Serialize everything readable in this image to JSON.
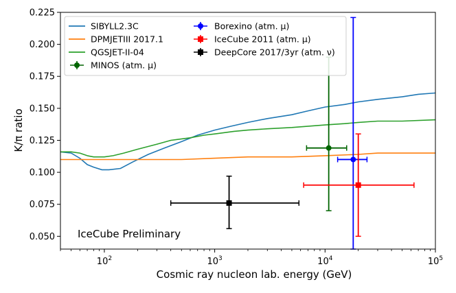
{
  "chart_data": {
    "type": "line",
    "xscale": "log",
    "xlim": [
      40,
      100000
    ],
    "ylim": [
      0.04,
      0.225
    ],
    "xlabel": "Cosmic ray nucleon lab. energy (GeV)",
    "ylabel": "K/π ratio",
    "annotation": "IceCube Preliminary",
    "yticks": [
      0.05,
      0.075,
      0.1,
      0.125,
      0.15,
      0.175,
      0.2,
      0.225
    ],
    "ytick_labels": [
      "0.050",
      "0.075",
      "0.100",
      "0.125",
      "0.150",
      "0.175",
      "0.200",
      "0.225"
    ],
    "xticks": [
      {
        "value": 100,
        "base": "10",
        "exp": "2"
      },
      {
        "value": 1000,
        "base": "10",
        "exp": "3"
      },
      {
        "value": 10000,
        "base": "10",
        "exp": "4"
      },
      {
        "value": 100000,
        "base": "10",
        "exp": "5"
      }
    ],
    "series": [
      {
        "name": "SIBYLL2.3C",
        "color": "#1f77b4",
        "x": [
          40,
          50,
          60,
          70,
          80,
          95,
          110,
          140,
          180,
          250,
          350,
          500,
          700,
          1000,
          1400,
          2000,
          3000,
          5000,
          7000,
          10000,
          15000,
          20000,
          30000,
          50000,
          70000,
          100000
        ],
        "y": [
          0.116,
          0.115,
          0.111,
          0.106,
          0.104,
          0.102,
          0.102,
          0.103,
          0.108,
          0.114,
          0.119,
          0.124,
          0.129,
          0.133,
          0.136,
          0.139,
          0.142,
          0.145,
          0.148,
          0.151,
          0.153,
          0.155,
          0.157,
          0.159,
          0.161,
          0.162
        ]
      },
      {
        "name": "DPMJETIII 2017.1",
        "color": "#ff7f0e",
        "x": [
          40,
          60,
          100,
          200,
          500,
          1000,
          2000,
          5000,
          10000,
          20000,
          30000,
          50000,
          100000
        ],
        "y": [
          0.11,
          0.11,
          0.11,
          0.11,
          0.11,
          0.111,
          0.112,
          0.112,
          0.113,
          0.114,
          0.115,
          0.115,
          0.115
        ]
      },
      {
        "name": "QGSJET-II-04",
        "color": "#2ca02c",
        "x": [
          40,
          50,
          60,
          70,
          80,
          100,
          120,
          150,
          200,
          300,
          400,
          600,
          800,
          1000,
          1500,
          2000,
          3000,
          5000,
          10000,
          15000,
          20000,
          30000,
          50000,
          100000
        ],
        "y": [
          0.116,
          0.116,
          0.115,
          0.113,
          0.112,
          0.112,
          0.113,
          0.115,
          0.118,
          0.122,
          0.125,
          0.127,
          0.129,
          0.13,
          0.132,
          0.133,
          0.134,
          0.135,
          0.137,
          0.138,
          0.139,
          0.14,
          0.14,
          0.141
        ]
      }
    ],
    "measurements": [
      {
        "name": "MINOS (atm. μ)",
        "color": "#006400",
        "marker": "circle",
        "x": 10800,
        "y": 0.119,
        "xlo": 6800,
        "xhi": 15700,
        "ylo": 0.07,
        "yhi": 0.19
      },
      {
        "name": "Borexino (atm. μ)",
        "color": "#0000ff",
        "marker": "circle",
        "x": 18000,
        "y": 0.11,
        "xlo": 13000,
        "xhi": 24000,
        "ylo": 0.04,
        "yhi": 0.221
      },
      {
        "name": "IceCube 2011 (atm. μ)",
        "color": "#ff0000",
        "marker": "square",
        "x": 20000,
        "y": 0.09,
        "xlo": 6400,
        "xhi": 64000,
        "ylo": 0.05,
        "yhi": 0.13
      },
      {
        "name": "DeepCore 2017/3yr (atm. ν)",
        "color": "#000000",
        "marker": "square",
        "x": 1350,
        "y": 0.076,
        "xlo": 400,
        "xhi": 5800,
        "ylo": 0.056,
        "yhi": 0.097
      }
    ],
    "legend": {
      "placement": "top-left",
      "entries": [
        {
          "label": "SIBYLL2.3C",
          "kind": "line",
          "color": "#1f77b4"
        },
        {
          "label": "DPMJETIII 2017.1",
          "kind": "line",
          "color": "#ff7f0e"
        },
        {
          "label": "QGSJET-II-04",
          "kind": "line",
          "color": "#2ca02c"
        },
        {
          "label": "MINOS (atm. μ)",
          "kind": "errorbar",
          "marker": "circle",
          "color": "#006400"
        },
        {
          "label": "Borexino (atm. μ)",
          "kind": "errorbar",
          "marker": "circle",
          "color": "#0000ff"
        },
        {
          "label": "IceCube 2011 (atm. μ)",
          "kind": "errorbar",
          "marker": "square",
          "color": "#ff0000"
        },
        {
          "label": "DeepCore 2017/3yr (atm. ν)",
          "kind": "errorbar",
          "marker": "square",
          "color": "#000000"
        }
      ]
    }
  }
}
